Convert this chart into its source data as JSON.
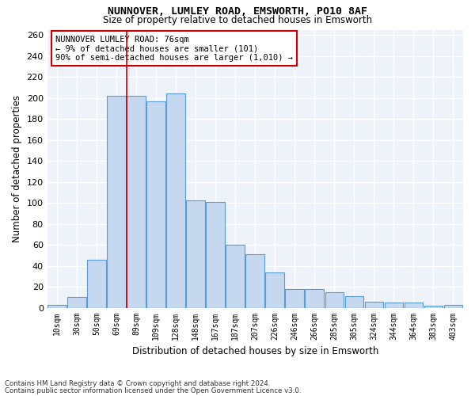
{
  "title": "NUNNOVER, LUMLEY ROAD, EMSWORTH, PO10 8AF",
  "subtitle": "Size of property relative to detached houses in Emsworth",
  "xlabel": "Distribution of detached houses by size in Emsworth",
  "ylabel": "Number of detached properties",
  "categories": [
    "10sqm",
    "30sqm",
    "50sqm",
    "69sqm",
    "89sqm",
    "109sqm",
    "128sqm",
    "148sqm",
    "167sqm",
    "187sqm",
    "207sqm",
    "226sqm",
    "246sqm",
    "266sqm",
    "285sqm",
    "305sqm",
    "324sqm",
    "344sqm",
    "364sqm",
    "383sqm",
    "403sqm"
  ],
  "values": [
    3,
    10,
    46,
    202,
    202,
    197,
    204,
    102,
    101,
    60,
    51,
    34,
    18,
    18,
    15,
    11,
    6,
    5,
    5,
    2,
    3
  ],
  "bar_color": "#c5d8f0",
  "bar_edge_color": "#5b9bd5",
  "vline_color": "#cc0000",
  "vline_x_index": 3.5,
  "annotation_text": "NUNNOVER LUMLEY ROAD: 76sqm\n← 9% of detached houses are smaller (101)\n90% of semi-detached houses are larger (1,010) →",
  "annotation_box_color": "#ffffff",
  "annotation_box_edge_color": "#cc0000",
  "ylim": [
    0,
    265
  ],
  "yticks": [
    0,
    20,
    40,
    60,
    80,
    100,
    120,
    140,
    160,
    180,
    200,
    220,
    240,
    260
  ],
  "bg_color": "#eef2f9",
  "grid_color": "#ffffff",
  "footnote1": "Contains HM Land Registry data © Crown copyright and database right 2024.",
  "footnote2": "Contains public sector information licensed under the Open Government Licence v3.0."
}
